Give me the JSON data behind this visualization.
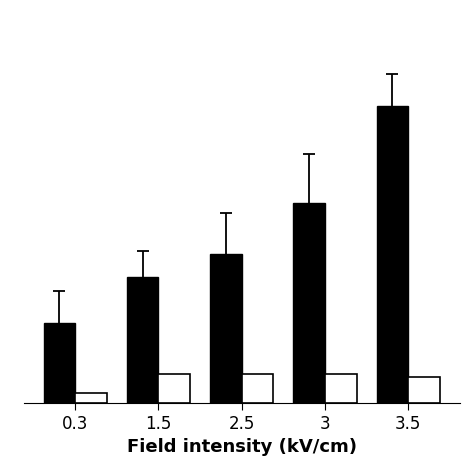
{
  "categories": [
    "0.3",
    "1.5",
    "2.5",
    "3",
    "3.5"
  ],
  "black_values": [
    1.4,
    2.2,
    2.6,
    3.5,
    5.2
  ],
  "white_values": [
    0.18,
    0.5,
    0.5,
    0.5,
    0.45
  ],
  "black_errors": [
    0.55,
    0.45,
    0.72,
    0.85,
    0.55
  ],
  "xlabel": "Field intensity (kV/cm)",
  "bar_width": 0.38,
  "black_color": "#000000",
  "white_color": "#ffffff",
  "white_edgecolor": "#000000",
  "background_color": "#ffffff",
  "xlabel_fontsize": 13,
  "xlabel_fontweight": "bold",
  "tick_fontsize": 12,
  "ylim": [
    0,
    6.8
  ],
  "figsize": [
    4.74,
    4.74
  ],
  "dpi": 100
}
